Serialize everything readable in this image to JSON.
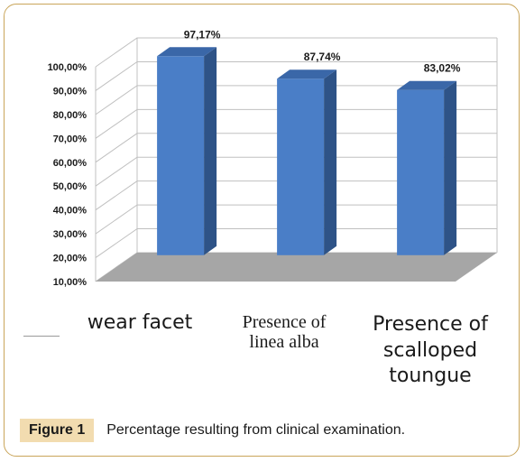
{
  "caption": {
    "label": "Figure 1",
    "text": "Percentage resulting from clinical examination."
  },
  "chart_data": {
    "type": "bar",
    "categories": [
      "wear facet",
      "Presence of linea alba",
      "Presence of scalloped toungue"
    ],
    "category_lines": [
      [
        "wear facet"
      ],
      [
        "Presence of",
        "linea alba"
      ],
      [
        "Presence of",
        "scalloped",
        "toungue"
      ]
    ],
    "series": [
      {
        "values": [
          97.17,
          87.74,
          83.02
        ]
      }
    ],
    "data_labels": [
      "97,17%",
      "87,74%",
      "83,02%"
    ],
    "yticks": [
      10,
      20,
      30,
      40,
      50,
      60,
      70,
      80,
      90,
      100
    ],
    "ytick_labels": [
      "10,00%",
      "20,00%",
      "30,00%",
      "40,00%",
      "50,00%",
      "60,00%",
      "70,00%",
      "80,00%",
      "90,00%",
      "100,00%"
    ],
    "ylim": [
      10,
      100
    ],
    "grid": true,
    "three_d": true,
    "colors": {
      "bar_front": "#4a7ec7",
      "bar_side": "#2e5387",
      "bar_top": "#3a67a8",
      "floor": "#a6a6a6",
      "wall": "#ffffff",
      "grid": "#c0c0c0"
    }
  }
}
